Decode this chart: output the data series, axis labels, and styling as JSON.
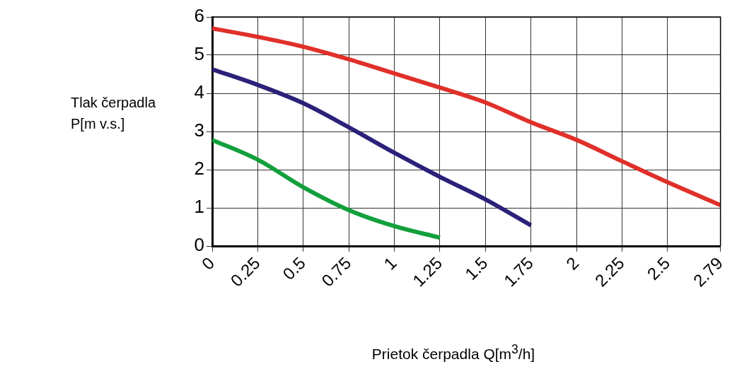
{
  "chart_data": {
    "type": "line",
    "xlabel": "Prietok čerpadla  Q[m$^{3}$/h]",
    "ylabel": "Tlak čerpadla\nP[m v.s.]",
    "xlim": [
      0,
      2.79
    ],
    "xticks": [
      0,
      0.25,
      0.5,
      0.75,
      1,
      1.25,
      1.5,
      1.75,
      2,
      2.25,
      2.5,
      2.79
    ],
    "ylim": [
      0,
      6
    ],
    "yticks": [
      0,
      1,
      2,
      3,
      4,
      5,
      6
    ],
    "grid": true,
    "legend": false,
    "marker": "none",
    "line_style": "solid",
    "series": [
      {
        "color": "#e0302a",
        "x": [
          0,
          0.25,
          0.5,
          0.75,
          1,
          1.25,
          1.5,
          1.75,
          2,
          2.25,
          2.5,
          2.79
        ],
        "values": [
          5.7,
          5.48,
          5.22,
          4.89,
          4.52,
          4.15,
          3.76,
          3.24,
          2.78,
          2.22,
          1.67,
          1.07
        ]
      },
      {
        "color": "#2b2179",
        "x": [
          0,
          0.25,
          0.5,
          0.75,
          1,
          1.25,
          1.5,
          1.75
        ],
        "values": [
          4.63,
          4.22,
          3.74,
          3.11,
          2.44,
          1.81,
          1.22,
          0.54
        ]
      },
      {
        "color": "#13a03c",
        "x": [
          0,
          0.25,
          0.5,
          0.75,
          1,
          1.25
        ],
        "values": [
          2.78,
          2.26,
          1.54,
          0.94,
          0.52,
          0.22
        ]
      }
    ]
  }
}
